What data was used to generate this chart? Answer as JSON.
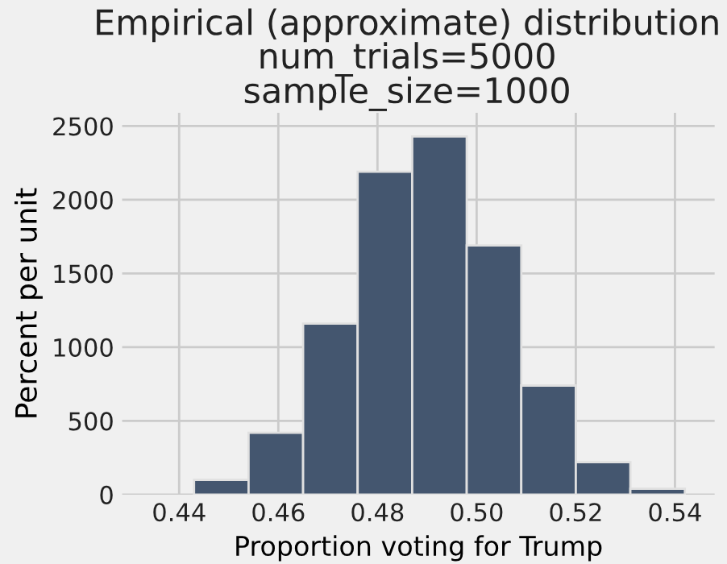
{
  "chart_data": {
    "type": "histogram",
    "title": "Empirical (approximate) distribution\nnum_trials=5000\nsample_size=1000",
    "xlabel": "Proportion voting for Trump",
    "ylabel": "Percent per unit",
    "bins": [
      0.443,
      0.454,
      0.465,
      0.476,
      0.487,
      0.498,
      0.509,
      0.52,
      0.531,
      0.542
    ],
    "values": [
      100,
      420,
      1160,
      2190,
      2430,
      1690,
      740,
      220,
      40
    ],
    "color": "#44566f",
    "xlim": [
      0.4285,
      0.548
    ],
    "ylim": [
      0,
      2590
    ],
    "xticks": [
      {
        "value": 0.44,
        "label": "0.44"
      },
      {
        "value": 0.46,
        "label": "0.46"
      },
      {
        "value": 0.48,
        "label": "0.48"
      },
      {
        "value": 0.5,
        "label": "0.50"
      },
      {
        "value": 0.52,
        "label": "0.52"
      },
      {
        "value": 0.54,
        "label": "0.54"
      }
    ],
    "yticks": [
      0,
      500,
      1000,
      1500,
      2000,
      2500
    ],
    "grid": true
  }
}
